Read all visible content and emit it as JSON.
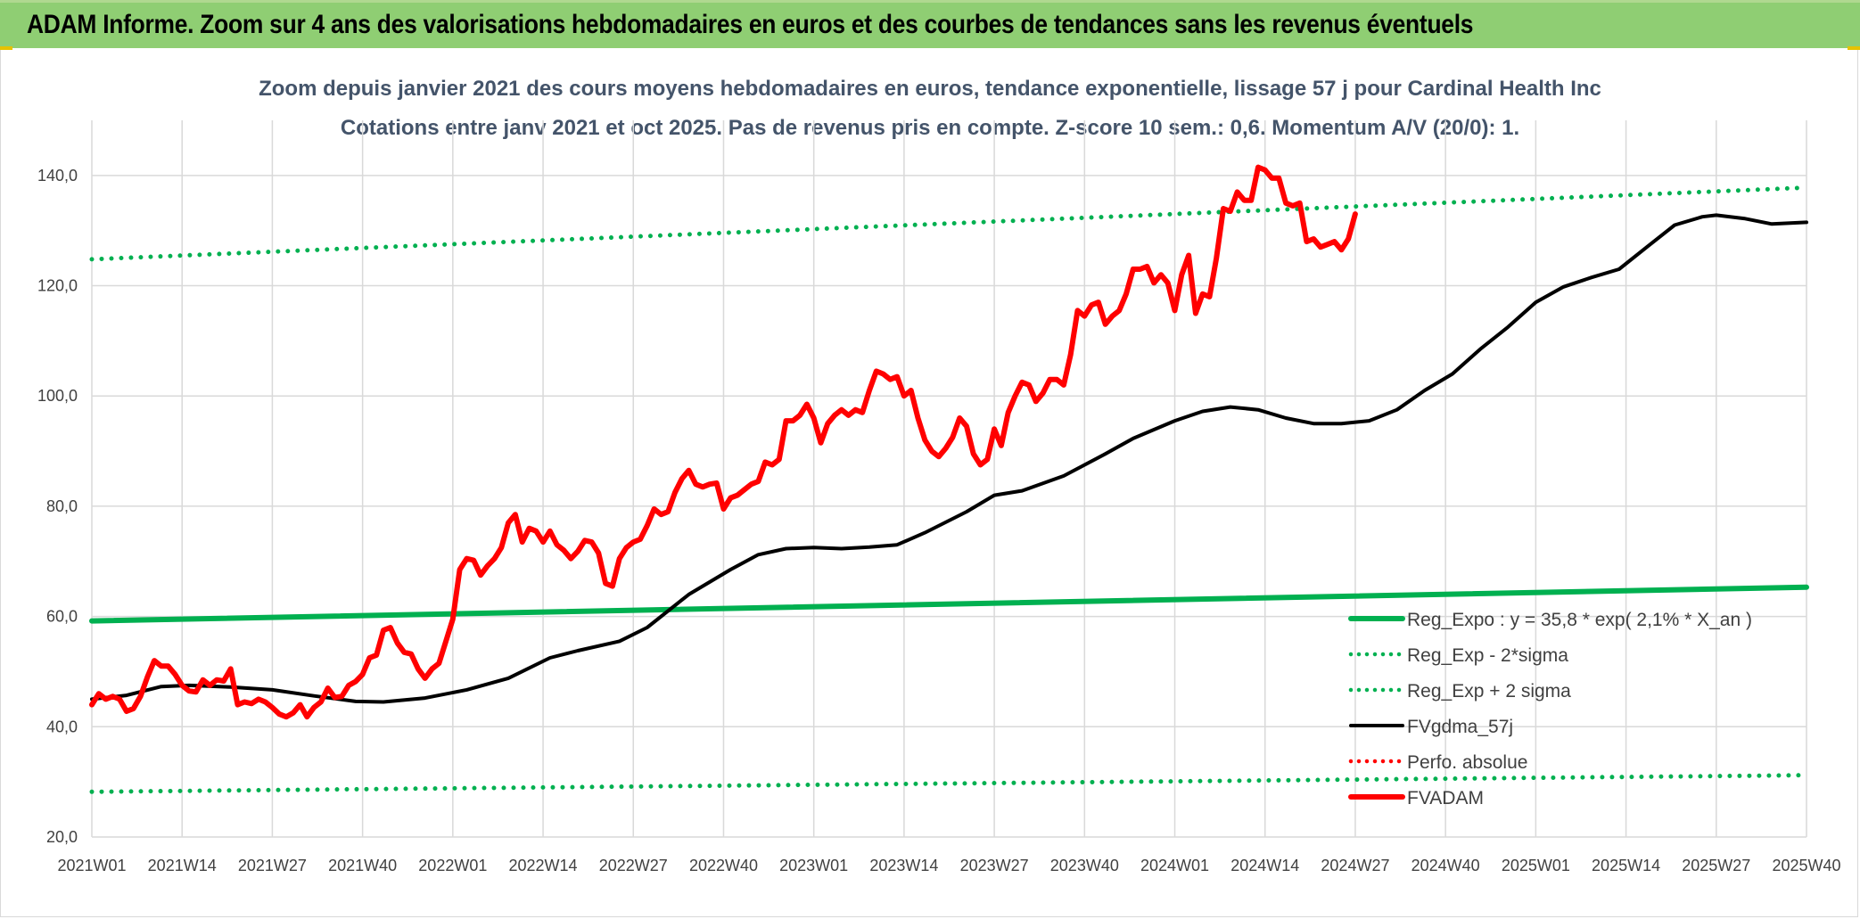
{
  "banner": {
    "title": "ADAM Informe. Zoom sur 4 ans des valorisations hebdomadaires en euros et des courbes de tendances sans les revenus éventuels"
  },
  "colors": {
    "banner_bg": "#8fce73",
    "green": "#00b050",
    "red": "#ff0000",
    "black": "#000000",
    "grid": "#d9d9d9"
  },
  "chart_data": {
    "type": "line",
    "title": "Zoom depuis janvier 2021 des cours moyens hebdomadaires en euros, tendance exponentielle, lissage 57 j pour Cardinal Health Inc",
    "subtitle": "Cotations entre janv 2021 et oct 2025. Pas de revenus pris en compte. Z-score 10 sem.: 0,6. Momentum A/V (20/0): 1.",
    "xlabel": "",
    "ylabel": "",
    "ylim": [
      20,
      150
    ],
    "x_range": [
      0,
      247
    ],
    "yticks": [
      "20,0",
      "40,0",
      "60,0",
      "80,0",
      "100,0",
      "120,0",
      "140,0"
    ],
    "ytick_values": [
      20,
      40,
      60,
      80,
      100,
      120,
      140
    ],
    "xticks": [
      "2021W01",
      "2021W14",
      "2021W27",
      "2021W40",
      "2022W01",
      "2022W14",
      "2022W27",
      "2022W40",
      "2023W01",
      "2023W14",
      "2023W27",
      "2023W40",
      "2024W01",
      "2024W14",
      "2024W27",
      "2024W40",
      "2025W01",
      "2025W14",
      "2025W27",
      "2025W40"
    ],
    "xtick_positions": [
      0,
      13,
      26,
      39,
      52,
      65,
      78,
      91,
      104,
      117,
      130,
      143,
      156,
      169,
      182,
      195,
      208,
      221,
      234,
      247
    ],
    "legend_position": "bottom-right",
    "series": [
      {
        "name": "Reg_Expo : y = 35,8 * exp( 2,1% *  X_an )",
        "style": "solid",
        "color": "#00b050",
        "points": [
          [
            0,
            59.2
          ],
          [
            247,
            65.3
          ]
        ]
      },
      {
        "name": "Reg_Exp - 2*sigma",
        "style": "dotted",
        "color": "#00b050",
        "points": [
          [
            0,
            28.2
          ],
          [
            247,
            31.2
          ]
        ]
      },
      {
        "name": "Reg_Exp + 2 sigma",
        "style": "dotted",
        "color": "#00b050",
        "points": [
          [
            0,
            124.8
          ],
          [
            247,
            137.8
          ]
        ]
      },
      {
        "name": "FVgdma_57j",
        "style": "solid",
        "color": "#000000",
        "points": [
          [
            0,
            45
          ],
          [
            5,
            45.7
          ],
          [
            10,
            47.3
          ],
          [
            14,
            47.5
          ],
          [
            20,
            47.2
          ],
          [
            26,
            46.7
          ],
          [
            32,
            45.6
          ],
          [
            38,
            44.6
          ],
          [
            42,
            44.5
          ],
          [
            48,
            45.2
          ],
          [
            54,
            46.7
          ],
          [
            60,
            48.8
          ],
          [
            66,
            52.5
          ],
          [
            70,
            53.8
          ],
          [
            76,
            55.5
          ],
          [
            80,
            58
          ],
          [
            86,
            64
          ],
          [
            92,
            68.5
          ],
          [
            96,
            71.2
          ],
          [
            100,
            72.3
          ],
          [
            104,
            72.5
          ],
          [
            108,
            72.3
          ],
          [
            112,
            72.6
          ],
          [
            116,
            73
          ],
          [
            120,
            75.2
          ],
          [
            126,
            79
          ],
          [
            130,
            82
          ],
          [
            134,
            82.8
          ],
          [
            140,
            85.5
          ],
          [
            146,
            89.5
          ],
          [
            150,
            92.3
          ],
          [
            156,
            95.5
          ],
          [
            160,
            97.2
          ],
          [
            164,
            98
          ],
          [
            168,
            97.5
          ],
          [
            172,
            96
          ],
          [
            176,
            95
          ],
          [
            180,
            95
          ],
          [
            184,
            95.5
          ],
          [
            188,
            97.5
          ],
          [
            192,
            101
          ],
          [
            196,
            104
          ],
          [
            200,
            108.5
          ],
          [
            204,
            112.5
          ],
          [
            208,
            117
          ],
          [
            212,
            119.8
          ],
          [
            216,
            121.5
          ],
          [
            220,
            123
          ],
          [
            224,
            127
          ],
          [
            228,
            131
          ],
          [
            232,
            132.5
          ],
          [
            234,
            132.8
          ],
          [
            238,
            132.2
          ],
          [
            242,
            131.2
          ],
          [
            247,
            131.5
          ]
        ]
      },
      {
        "name": "Perfo. absolue",
        "style": "dotted",
        "color": "#ff0000",
        "points": []
      },
      {
        "name": "FVADAM",
        "style": "solid-thick",
        "color": "#ff0000",
        "points": [
          [
            0,
            44
          ],
          [
            1,
            46
          ],
          [
            2,
            45
          ],
          [
            3,
            45.5
          ],
          [
            4,
            45
          ],
          [
            5,
            42.8
          ],
          [
            6,
            43.3
          ],
          [
            7,
            45.5
          ],
          [
            8,
            49
          ],
          [
            9,
            52
          ],
          [
            10,
            51
          ],
          [
            11,
            51
          ],
          [
            12,
            49.5
          ],
          [
            13,
            47.5
          ],
          [
            14,
            46.5
          ],
          [
            15,
            46.3
          ],
          [
            16,
            48.5
          ],
          [
            17,
            47.5
          ],
          [
            18,
            48.5
          ],
          [
            19,
            48.3
          ],
          [
            20,
            50.5
          ],
          [
            21,
            44
          ],
          [
            22,
            44.5
          ],
          [
            23,
            44.2
          ],
          [
            24,
            45
          ],
          [
            25,
            44.5
          ],
          [
            26,
            43.5
          ],
          [
            27,
            42.3
          ],
          [
            28,
            41.8
          ],
          [
            29,
            42.5
          ],
          [
            30,
            44
          ],
          [
            31,
            41.8
          ],
          [
            32,
            43.5
          ],
          [
            33,
            44.5
          ],
          [
            34,
            47
          ],
          [
            35,
            45.3
          ],
          [
            36,
            45.5
          ],
          [
            37,
            47.5
          ],
          [
            38,
            48.2
          ],
          [
            39,
            49.5
          ],
          [
            40,
            52.5
          ],
          [
            41,
            53
          ],
          [
            42,
            57.5
          ],
          [
            43,
            58
          ],
          [
            44,
            55.2
          ],
          [
            45,
            53.5
          ],
          [
            46,
            53.2
          ],
          [
            47,
            50.5
          ],
          [
            48,
            48.8
          ],
          [
            49,
            50.5
          ],
          [
            50,
            51.5
          ],
          [
            51,
            55.5
          ],
          [
            52,
            59.5
          ],
          [
            53,
            68.5
          ],
          [
            54,
            70.5
          ],
          [
            55,
            70.2
          ],
          [
            56,
            67.5
          ],
          [
            57,
            69.2
          ],
          [
            58,
            70.5
          ],
          [
            59,
            72.5
          ],
          [
            60,
            77
          ],
          [
            61,
            78.5
          ],
          [
            62,
            73.5
          ],
          [
            63,
            76
          ],
          [
            64,
            75.5
          ],
          [
            65,
            73.5
          ],
          [
            66,
            75.5
          ],
          [
            67,
            73
          ],
          [
            68,
            72
          ],
          [
            69,
            70.5
          ],
          [
            70,
            71.8
          ],
          [
            71,
            73.8
          ],
          [
            72,
            73.5
          ],
          [
            73,
            71.5
          ],
          [
            74,
            66
          ],
          [
            75,
            65.5
          ],
          [
            76,
            70.5
          ],
          [
            77,
            72.5
          ],
          [
            78,
            73.5
          ],
          [
            79,
            74
          ],
          [
            80,
            76.5
          ],
          [
            81,
            79.5
          ],
          [
            82,
            78.5
          ],
          [
            83,
            79
          ],
          [
            84,
            82.5
          ],
          [
            85,
            85
          ],
          [
            86,
            86.5
          ],
          [
            87,
            84
          ],
          [
            88,
            83.5
          ],
          [
            89,
            84
          ],
          [
            90,
            84.2
          ],
          [
            91,
            79.5
          ],
          [
            92,
            81.5
          ],
          [
            93,
            82
          ],
          [
            94,
            83
          ],
          [
            95,
            84
          ],
          [
            96,
            84.5
          ],
          [
            97,
            88
          ],
          [
            98,
            87.5
          ],
          [
            99,
            88.5
          ],
          [
            100,
            95.5
          ],
          [
            101,
            95.5
          ],
          [
            102,
            96.5
          ],
          [
            103,
            98.5
          ],
          [
            104,
            96
          ],
          [
            105,
            91.5
          ],
          [
            106,
            95
          ],
          [
            107,
            96.5
          ],
          [
            108,
            97.5
          ],
          [
            109,
            96.5
          ],
          [
            110,
            97.5
          ],
          [
            111,
            97
          ],
          [
            112,
            101
          ],
          [
            113,
            104.5
          ],
          [
            114,
            104
          ],
          [
            115,
            103
          ],
          [
            116,
            103.5
          ],
          [
            117,
            100
          ],
          [
            118,
            101
          ],
          [
            119,
            96
          ],
          [
            120,
            92
          ],
          [
            121,
            90
          ],
          [
            122,
            89
          ],
          [
            123,
            90.5
          ],
          [
            124,
            92.5
          ],
          [
            125,
            96
          ],
          [
            126,
            94.5
          ],
          [
            127,
            89.5
          ],
          [
            128,
            87.5
          ],
          [
            129,
            88.5
          ],
          [
            130,
            94
          ],
          [
            131,
            91
          ],
          [
            132,
            97
          ],
          [
            133,
            100
          ],
          [
            134,
            102.5
          ],
          [
            135,
            102
          ],
          [
            136,
            99
          ],
          [
            137,
            100.5
          ],
          [
            138,
            103
          ],
          [
            139,
            103
          ],
          [
            140,
            102
          ],
          [
            141,
            107.5
          ],
          [
            142,
            115.5
          ],
          [
            143,
            114.5
          ],
          [
            144,
            116.5
          ],
          [
            145,
            117
          ],
          [
            146,
            113
          ],
          [
            147,
            114.5
          ],
          [
            148,
            115.5
          ],
          [
            149,
            118.5
          ],
          [
            150,
            123
          ],
          [
            151,
            123
          ],
          [
            152,
            123.5
          ],
          [
            153,
            120.5
          ],
          [
            154,
            122
          ],
          [
            155,
            120.5
          ],
          [
            156,
            115.5
          ],
          [
            157,
            122
          ],
          [
            158,
            125.5
          ],
          [
            159,
            115
          ],
          [
            160,
            118.5
          ],
          [
            161,
            118
          ],
          [
            162,
            125
          ],
          [
            163,
            134
          ],
          [
            164,
            133.5
          ],
          [
            165,
            137
          ],
          [
            166,
            135.5
          ],
          [
            167,
            135.5
          ],
          [
            168,
            141.5
          ],
          [
            169,
            141
          ],
          [
            170,
            139.5
          ],
          [
            171,
            139.5
          ],
          [
            172,
            135
          ],
          [
            173,
            134.5
          ],
          [
            174,
            135
          ],
          [
            175,
            128
          ],
          [
            176,
            128.5
          ],
          [
            177,
            127
          ],
          [
            178,
            127.5
          ],
          [
            179,
            128
          ],
          [
            180,
            126.5
          ],
          [
            181,
            128.5
          ],
          [
            182,
            133
          ]
        ]
      }
    ]
  }
}
